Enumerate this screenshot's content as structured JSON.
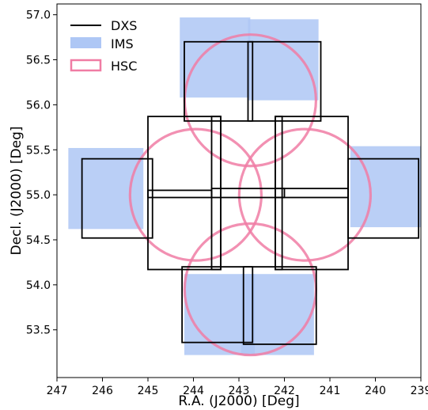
{
  "chart_data": {
    "type": "scatter",
    "title": "",
    "xlabel": "R.A. (J2000) [Deg]",
    "ylabel": "Decl. (J2000) [Deg]",
    "xlim": [
      247,
      239
    ],
    "ylim": [
      52.97,
      57.12
    ],
    "xticks": [
      247,
      246,
      245,
      244,
      243,
      242,
      241,
      240,
      239
    ],
    "yticks": [
      53.5,
      54.0,
      54.5,
      55.0,
      55.5,
      56.0,
      56.5,
      57.0
    ],
    "xtick_labels": [
      "247",
      "246",
      "245",
      "244",
      "243",
      "242",
      "241",
      "240",
      "239"
    ],
    "ytick_labels": [
      "53.5",
      "54.0",
      "54.5",
      "55.0",
      "55.5",
      "56.0",
      "56.5",
      "57.0"
    ],
    "grid": false,
    "legend_position": "top-left",
    "legend": [
      {
        "label": "DXS",
        "style": "line",
        "color": "#000000"
      },
      {
        "label": "IMS",
        "style": "patch",
        "color": "#aec7f5"
      },
      {
        "label": "HSC",
        "style": "circle-outline",
        "color": "#f07ca4"
      }
    ],
    "series": [
      {
        "name": "IMS",
        "kind": "filled-rect",
        "color": "#aec7f5",
        "rects": [
          {
            "ra_min": 242.75,
            "ra_max": 244.3,
            "dec_min": 56.08,
            "dec_max": 56.97
          },
          {
            "ra_min": 241.25,
            "ra_max": 242.8,
            "dec_min": 56.05,
            "dec_max": 56.95
          },
          {
            "ra_min": 245.1,
            "ra_max": 246.75,
            "dec_min": 54.62,
            "dec_max": 55.52
          },
          {
            "ra_min": 239.0,
            "ra_max": 240.55,
            "dec_min": 54.64,
            "dec_max": 55.54
          },
          {
            "ra_min": 242.65,
            "ra_max": 244.2,
            "dec_min": 53.22,
            "dec_max": 54.12
          },
          {
            "ra_min": 241.35,
            "ra_max": 242.95,
            "dec_min": 53.22,
            "dec_max": 54.12
          }
        ]
      },
      {
        "name": "DXS",
        "kind": "outline-rect",
        "color": "#000000",
        "rects": [
          {
            "ra_min": 242.7,
            "ra_max": 244.2,
            "dec_min": 55.82,
            "dec_max": 56.7
          },
          {
            "ra_min": 241.2,
            "ra_max": 242.8,
            "dec_min": 55.82,
            "dec_max": 56.7
          },
          {
            "ra_min": 244.9,
            "ra_max": 246.45,
            "dec_min": 54.52,
            "dec_max": 55.4
          },
          {
            "ra_min": 239.05,
            "ra_max": 240.6,
            "dec_min": 54.52,
            "dec_max": 55.4
          },
          {
            "ra_min": 242.7,
            "ra_max": 244.25,
            "dec_min": 53.36,
            "dec_max": 54.2
          },
          {
            "ra_min": 241.3,
            "ra_max": 242.9,
            "dec_min": 53.34,
            "dec_max": 54.2
          },
          {
            "ra_min": 243.4,
            "ra_max": 245.0,
            "dec_min": 54.17,
            "dec_max": 55.87
          },
          {
            "ra_min": 240.6,
            "ra_max": 242.2,
            "dec_min": 54.17,
            "dec_max": 55.87
          },
          {
            "ra_min": 243.4,
            "ra_max": 243.6,
            "dec_min": 54.17,
            "dec_max": 55.87
          },
          {
            "ra_min": 242.05,
            "ra_max": 242.2,
            "dec_min": 54.17,
            "dec_max": 55.87
          },
          {
            "ra_min": 243.6,
            "ra_max": 245.0,
            "dec_min": 54.97,
            "dec_max": 55.05
          },
          {
            "ra_min": 240.6,
            "ra_max": 242.2,
            "dec_min": 54.97,
            "dec_max": 55.07
          },
          {
            "ra_min": 242.0,
            "ra_max": 243.6,
            "dec_min": 54.97,
            "dec_max": 55.07
          }
        ]
      },
      {
        "name": "HSC",
        "kind": "circle",
        "color": "#f07ca4",
        "radius_dec": 0.73,
        "circles": [
          {
            "ra": 242.75,
            "dec": 56.05
          },
          {
            "ra": 243.95,
            "dec": 55.0
          },
          {
            "ra": 241.55,
            "dec": 55.0
          },
          {
            "ra": 242.75,
            "dec": 53.95
          }
        ]
      }
    ]
  }
}
